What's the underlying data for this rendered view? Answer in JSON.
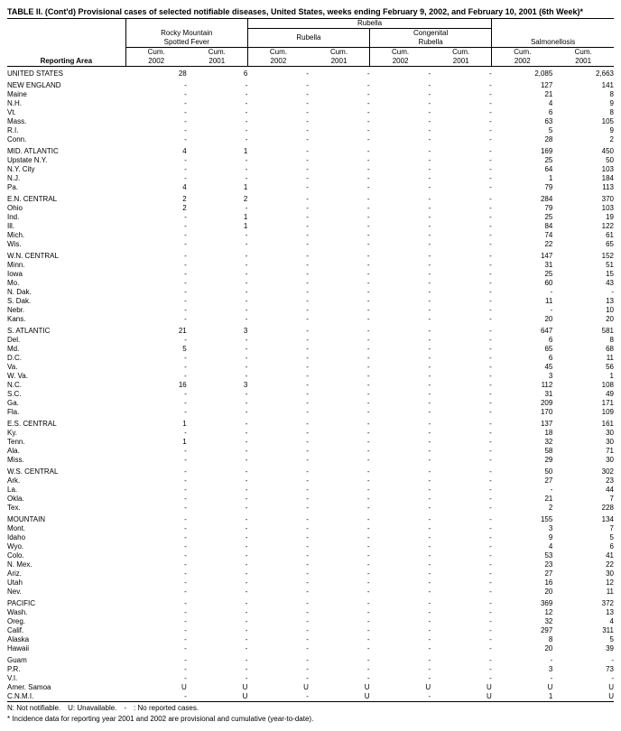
{
  "title": "TABLE II. (Cont'd) Provisional cases of selected notifiable diseases, United States, weeks ending February 9, 2002, and February 10, 2001 (6th Week)*",
  "headers": {
    "reporting_area": "Reporting Area",
    "rmsf": "Rocky Mountain\nSpotted Fever",
    "rubella_group": "Rubella",
    "rubella": "Rubella",
    "congenital": "Congenital\nRubella",
    "salmonellosis": "Salmonellosis",
    "cum2002": "Cum.\n2002",
    "cum2001": "Cum.\n2001"
  },
  "rows": [
    {
      "section": true,
      "area": "UNITED STATES",
      "v": [
        "28",
        "6",
        "-",
        "-",
        "-",
        "-",
        "2,085",
        "2,663"
      ]
    },
    {
      "section": true,
      "area": "NEW ENGLAND",
      "v": [
        "-",
        "-",
        "-",
        "-",
        "-",
        "-",
        "127",
        "141"
      ]
    },
    {
      "area": "Maine",
      "v": [
        "-",
        "-",
        "-",
        "-",
        "-",
        "-",
        "21",
        "8"
      ]
    },
    {
      "area": "N.H.",
      "v": [
        "-",
        "-",
        "-",
        "-",
        "-",
        "-",
        "4",
        "9"
      ]
    },
    {
      "area": "Vt.",
      "v": [
        "-",
        "-",
        "-",
        "-",
        "-",
        "-",
        "6",
        "8"
      ]
    },
    {
      "area": "Mass.",
      "v": [
        "-",
        "-",
        "-",
        "-",
        "-",
        "-",
        "63",
        "105"
      ]
    },
    {
      "area": "R.I.",
      "v": [
        "-",
        "-",
        "-",
        "-",
        "-",
        "-",
        "5",
        "9"
      ]
    },
    {
      "area": "Conn.",
      "v": [
        "-",
        "-",
        "-",
        "-",
        "-",
        "-",
        "28",
        "2"
      ]
    },
    {
      "section": true,
      "area": "MID. ATLANTIC",
      "v": [
        "4",
        "1",
        "-",
        "-",
        "-",
        "-",
        "169",
        "450"
      ]
    },
    {
      "area": "Upstate N.Y.",
      "v": [
        "-",
        "-",
        "-",
        "-",
        "-",
        "-",
        "25",
        "50"
      ]
    },
    {
      "area": "N.Y. City",
      "v": [
        "-",
        "-",
        "-",
        "-",
        "-",
        "-",
        "64",
        "103"
      ]
    },
    {
      "area": "N.J.",
      "v": [
        "-",
        "-",
        "-",
        "-",
        "-",
        "-",
        "1",
        "184"
      ]
    },
    {
      "area": "Pa.",
      "v": [
        "4",
        "1",
        "-",
        "-",
        "-",
        "-",
        "79",
        "113"
      ]
    },
    {
      "section": true,
      "area": "E.N. CENTRAL",
      "v": [
        "2",
        "2",
        "-",
        "-",
        "-",
        "-",
        "284",
        "370"
      ]
    },
    {
      "area": "Ohio",
      "v": [
        "2",
        "-",
        "-",
        "-",
        "-",
        "-",
        "79",
        "103"
      ]
    },
    {
      "area": "Ind.",
      "v": [
        "-",
        "1",
        "-",
        "-",
        "-",
        "-",
        "25",
        "19"
      ]
    },
    {
      "area": "Ill.",
      "v": [
        "-",
        "1",
        "-",
        "-",
        "-",
        "-",
        "84",
        "122"
      ]
    },
    {
      "area": "Mich.",
      "v": [
        "-",
        "-",
        "-",
        "-",
        "-",
        "-",
        "74",
        "61"
      ]
    },
    {
      "area": "Wis.",
      "v": [
        "-",
        "-",
        "-",
        "-",
        "-",
        "-",
        "22",
        "65"
      ]
    },
    {
      "section": true,
      "area": "W.N. CENTRAL",
      "v": [
        "-",
        "-",
        "-",
        "-",
        "-",
        "-",
        "147",
        "152"
      ]
    },
    {
      "area": "Minn.",
      "v": [
        "-",
        "-",
        "-",
        "-",
        "-",
        "-",
        "31",
        "51"
      ]
    },
    {
      "area": "Iowa",
      "v": [
        "-",
        "-",
        "-",
        "-",
        "-",
        "-",
        "25",
        "15"
      ]
    },
    {
      "area": "Mo.",
      "v": [
        "-",
        "-",
        "-",
        "-",
        "-",
        "-",
        "60",
        "43"
      ]
    },
    {
      "area": "N. Dak.",
      "v": [
        "-",
        "-",
        "-",
        "-",
        "-",
        "-",
        "-",
        "-"
      ]
    },
    {
      "area": "S. Dak.",
      "v": [
        "-",
        "-",
        "-",
        "-",
        "-",
        "-",
        "11",
        "13"
      ]
    },
    {
      "area": "Nebr.",
      "v": [
        "-",
        "-",
        "-",
        "-",
        "-",
        "-",
        "-",
        "10"
      ]
    },
    {
      "area": "Kans.",
      "v": [
        "-",
        "-",
        "-",
        "-",
        "-",
        "-",
        "20",
        "20"
      ]
    },
    {
      "section": true,
      "area": "S. ATLANTIC",
      "v": [
        "21",
        "3",
        "-",
        "-",
        "-",
        "-",
        "647",
        "581"
      ]
    },
    {
      "area": "Del.",
      "v": [
        "-",
        "-",
        "-",
        "-",
        "-",
        "-",
        "6",
        "8"
      ]
    },
    {
      "area": "Md.",
      "v": [
        "5",
        "-",
        "-",
        "-",
        "-",
        "-",
        "65",
        "68"
      ]
    },
    {
      "area": "D.C.",
      "v": [
        "-",
        "-",
        "-",
        "-",
        "-",
        "-",
        "6",
        "11"
      ]
    },
    {
      "area": "Va.",
      "v": [
        "-",
        "-",
        "-",
        "-",
        "-",
        "-",
        "45",
        "56"
      ]
    },
    {
      "area": "W. Va.",
      "v": [
        "-",
        "-",
        "-",
        "-",
        "-",
        "-",
        "3",
        "1"
      ]
    },
    {
      "area": "N.C.",
      "v": [
        "16",
        "3",
        "-",
        "-",
        "-",
        "-",
        "112",
        "108"
      ]
    },
    {
      "area": "S.C.",
      "v": [
        "-",
        "-",
        "-",
        "-",
        "-",
        "-",
        "31",
        "49"
      ]
    },
    {
      "area": "Ga.",
      "v": [
        "-",
        "-",
        "-",
        "-",
        "-",
        "-",
        "209",
        "171"
      ]
    },
    {
      "area": "Fla.",
      "v": [
        "-",
        "-",
        "-",
        "-",
        "-",
        "-",
        "170",
        "109"
      ]
    },
    {
      "section": true,
      "area": "E.S. CENTRAL",
      "v": [
        "1",
        "-",
        "-",
        "-",
        "-",
        "-",
        "137",
        "161"
      ]
    },
    {
      "area": "Ky.",
      "v": [
        "-",
        "-",
        "-",
        "-",
        "-",
        "-",
        "18",
        "30"
      ]
    },
    {
      "area": "Tenn.",
      "v": [
        "1",
        "-",
        "-",
        "-",
        "-",
        "-",
        "32",
        "30"
      ]
    },
    {
      "area": "Ala.",
      "v": [
        "-",
        "-",
        "-",
        "-",
        "-",
        "-",
        "58",
        "71"
      ]
    },
    {
      "area": "Miss.",
      "v": [
        "-",
        "-",
        "-",
        "-",
        "-",
        "-",
        "29",
        "30"
      ]
    },
    {
      "section": true,
      "area": "W.S. CENTRAL",
      "v": [
        "-",
        "-",
        "-",
        "-",
        "-",
        "-",
        "50",
        "302"
      ]
    },
    {
      "area": "Ark.",
      "v": [
        "-",
        "-",
        "-",
        "-",
        "-",
        "-",
        "27",
        "23"
      ]
    },
    {
      "area": "La.",
      "v": [
        "-",
        "-",
        "-",
        "-",
        "-",
        "-",
        "-",
        "44"
      ]
    },
    {
      "area": "Okla.",
      "v": [
        "-",
        "-",
        "-",
        "-",
        "-",
        "-",
        "21",
        "7"
      ]
    },
    {
      "area": "Tex.",
      "v": [
        "-",
        "-",
        "-",
        "-",
        "-",
        "-",
        "2",
        "228"
      ]
    },
    {
      "section": true,
      "area": "MOUNTAIN",
      "v": [
        "-",
        "-",
        "-",
        "-",
        "-",
        "-",
        "155",
        "134"
      ]
    },
    {
      "area": "Mont.",
      "v": [
        "-",
        "-",
        "-",
        "-",
        "-",
        "-",
        "3",
        "7"
      ]
    },
    {
      "area": "Idaho",
      "v": [
        "-",
        "-",
        "-",
        "-",
        "-",
        "-",
        "9",
        "5"
      ]
    },
    {
      "area": "Wyo.",
      "v": [
        "-",
        "-",
        "-",
        "-",
        "-",
        "-",
        "4",
        "6"
      ]
    },
    {
      "area": "Colo.",
      "v": [
        "-",
        "-",
        "-",
        "-",
        "-",
        "-",
        "53",
        "41"
      ]
    },
    {
      "area": "N. Mex.",
      "v": [
        "-",
        "-",
        "-",
        "-",
        "-",
        "-",
        "23",
        "22"
      ]
    },
    {
      "area": "Ariz.",
      "v": [
        "-",
        "-",
        "-",
        "-",
        "-",
        "-",
        "27",
        "30"
      ]
    },
    {
      "area": "Utah",
      "v": [
        "-",
        "-",
        "-",
        "-",
        "-",
        "-",
        "16",
        "12"
      ]
    },
    {
      "area": "Nev.",
      "v": [
        "-",
        "-",
        "-",
        "-",
        "-",
        "-",
        "20",
        "11"
      ]
    },
    {
      "section": true,
      "area": "PACIFIC",
      "v": [
        "-",
        "-",
        "-",
        "-",
        "-",
        "-",
        "369",
        "372"
      ]
    },
    {
      "area": "Wash.",
      "v": [
        "-",
        "-",
        "-",
        "-",
        "-",
        "-",
        "12",
        "13"
      ]
    },
    {
      "area": "Oreg.",
      "v": [
        "-",
        "-",
        "-",
        "-",
        "-",
        "-",
        "32",
        "4"
      ]
    },
    {
      "area": "Calif.",
      "v": [
        "-",
        "-",
        "-",
        "-",
        "-",
        "-",
        "297",
        "311"
      ]
    },
    {
      "area": "Alaska",
      "v": [
        "-",
        "-",
        "-",
        "-",
        "-",
        "-",
        "8",
        "5"
      ]
    },
    {
      "area": "Hawaii",
      "v": [
        "-",
        "-",
        "-",
        "-",
        "-",
        "-",
        "20",
        "39"
      ]
    },
    {
      "section": true,
      "area": "Guam",
      "v": [
        "-",
        "-",
        "-",
        "-",
        "-",
        "-",
        "-",
        "-"
      ]
    },
    {
      "area": "P.R.",
      "v": [
        "-",
        "-",
        "-",
        "-",
        "-",
        "-",
        "3",
        "73"
      ]
    },
    {
      "area": "V.I.",
      "v": [
        "-",
        "-",
        "-",
        "-",
        "-",
        "-",
        "-",
        "-"
      ]
    },
    {
      "area": "Amer. Samoa",
      "v": [
        "U",
        "U",
        "U",
        "U",
        "U",
        "U",
        "U",
        "U"
      ]
    },
    {
      "area": "C.N.M.I.",
      "v": [
        "-",
        "U",
        "-",
        "U",
        "-",
        "U",
        "1",
        "U"
      ]
    }
  ],
  "footnotes": {
    "line1": "N: Not notifiable. U: Unavailable. - : No reported cases.",
    "line2": "* Incidence data for reporting year 2001 and 2002 are provisional and cumulative (year-to-date)."
  }
}
